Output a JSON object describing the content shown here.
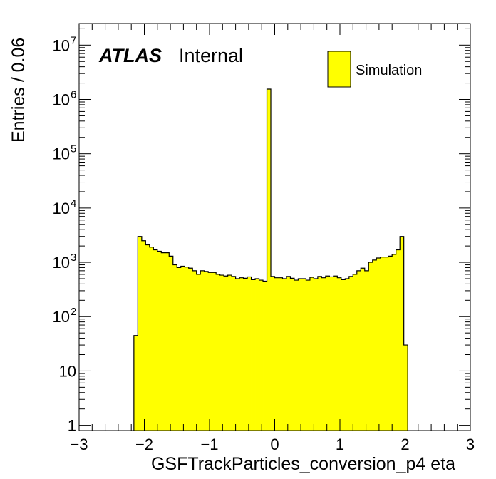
{
  "chart_data": {
    "type": "bar",
    "xlabel": "GSFTrackParticles_conversion_p4 eta",
    "ylabel": "Entries / 0.06",
    "xlim": [
      -3,
      3
    ],
    "ylim": [
      0.8,
      25000000
    ],
    "y_scale": "log",
    "grid": false,
    "fill_color": "#ffff00",
    "edge_color": "#000000",
    "x_tick_labels": [
      "−3",
      "−2",
      "−1",
      "0",
      "1",
      "2",
      "3"
    ],
    "y_tick_labels": [
      {
        "value": 1,
        "base": "1",
        "exp": ""
      },
      {
        "value": 10,
        "base": "10",
        "exp": ""
      },
      {
        "value": 100,
        "base": "10",
        "exp": "2"
      },
      {
        "value": 1000,
        "base": "10",
        "exp": "3"
      },
      {
        "value": 10000,
        "base": "10",
        "exp": "4"
      },
      {
        "value": 100000,
        "base": "10",
        "exp": "5"
      },
      {
        "value": 1000000,
        "base": "10",
        "exp": "6"
      },
      {
        "value": 10000000,
        "base": "10",
        "exp": "7"
      }
    ],
    "bin_width": 0.06,
    "first_bin_low_edge": -2.16,
    "values": [
      45,
      3000,
      2500,
      2100,
      1900,
      1700,
      1600,
      1500,
      1500,
      1300,
      900,
      800,
      850,
      820,
      780,
      700,
      600,
      700,
      680,
      650,
      650,
      600,
      580,
      560,
      580,
      550,
      500,
      520,
      510,
      540,
      480,
      500,
      470,
      450,
      1550000,
      550,
      520,
      520,
      500,
      550,
      510,
      470,
      500,
      500,
      470,
      530,
      500,
      550,
      520,
      560,
      540,
      560,
      520,
      480,
      500,
      550,
      600,
      700,
      780,
      700,
      1000,
      1100,
      1200,
      1250,
      1250,
      1300,
      1400,
      1700,
      3000,
      30
    ],
    "legend": {
      "entries": [
        "Simulation"
      ],
      "placement": "top-right"
    },
    "annotations": {
      "experiment": "ATLAS",
      "status": "Internal"
    }
  }
}
